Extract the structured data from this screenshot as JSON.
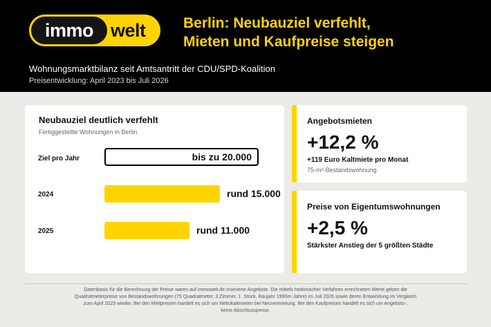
{
  "header": {
    "logo_left": "immo",
    "logo_right": "welt",
    "headline_line1": "Berlin: Neubauziel verfehlt,",
    "headline_line2": "Mieten und Kaufpreise steigen",
    "subtitle": "Wohnungsmarktbilanz seit Amtsantritt der CDU/SPD-Koalition",
    "period": "Preisentwicklung: April 2023 bis Juli 2026"
  },
  "construction_card": {
    "title": "Neubauziel deutlich verfehlt",
    "subtitle": "Fertiggestellte Wohnungen in Berlin",
    "goal_label": "Ziel pro Jahr",
    "goal_value": "bis zu 20.000"
  },
  "chart_data": {
    "type": "bar",
    "orientation": "horizontal",
    "title": "Neubauziel deutlich verfehlt",
    "subtitle": "Fertiggestellte Wohnungen in Berlin",
    "categories": [
      "2024",
      "2025"
    ],
    "values": [
      15000,
      11000
    ],
    "value_labels": [
      "rund 15.000",
      "rund 11.000"
    ],
    "target": {
      "label": "Ziel pro Jahr",
      "value": 20000,
      "value_label": "bis zu 20.000"
    },
    "xlim": [
      0,
      20000
    ],
    "bar_color": "#ffd400",
    "grid": false
  },
  "rent_card": {
    "title": "Angebotsmieten",
    "value": "+12,2 %",
    "detail": "+119 Euro Kaltmiete pro Monat",
    "note": "75-m²-Bestandswohnung"
  },
  "property_card": {
    "title": "Preise von Eigentumswohnungen",
    "value": "+2,5 %",
    "detail": "Stärkster Anstieg der 5 größten Städte"
  },
  "footnote": {
    "line1": "Datenbasis für die Berechnung der Preise waren auf immowelt.de inserierte Angebote. Die mittels hedonischer Verfahren errechneten Werte geben die",
    "line2": "Quadratmeterpreise von Bestandswohnungen (75 Quadratmeter, 3 Zimmer, 1. Stock, Baujahr 1990er-Jahre) im Juli 2026 sowie deren Entwicklung im Vergleich",
    "line3": "zum April 2023 wieder. Bei den Mietpreisen handelt es sich um Nettokaltmieten bei Neuvermietung. Bei den Kaufpreisen handelt es sich um Angebots-,",
    "line4": "keine Abschlusspreise."
  },
  "colors": {
    "accent": "#ffd400",
    "header_bg": "#000000",
    "page_bg": "#ecebe7"
  }
}
